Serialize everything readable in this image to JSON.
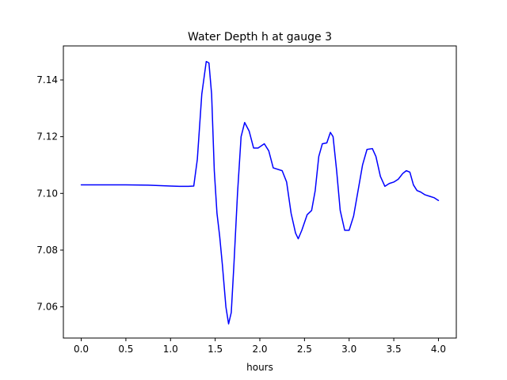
{
  "chart_data": {
    "type": "line",
    "title": "Water Depth h at gauge 3",
    "xlabel": "hours",
    "ylabel": "",
    "xlim": [
      -0.2,
      4.2
    ],
    "ylim": [
      7.049,
      7.152
    ],
    "grid": false,
    "x_ticks": [
      0.0,
      0.5,
      1.0,
      1.5,
      2.0,
      2.5,
      3.0,
      3.5,
      4.0
    ],
    "x_tick_labels": [
      "0.0",
      "0.5",
      "1.0",
      "1.5",
      "2.0",
      "2.5",
      "3.0",
      "3.5",
      "4.0"
    ],
    "y_ticks": [
      7.06,
      7.08,
      7.1,
      7.12,
      7.14
    ],
    "y_tick_labels": [
      "7.06",
      "7.08",
      "7.10",
      "7.12",
      "7.14"
    ],
    "series": [
      {
        "color": "#0000ff",
        "x": [
          0.0,
          0.5,
          0.75,
          1.0,
          1.1,
          1.2,
          1.26,
          1.3,
          1.35,
          1.4,
          1.43,
          1.46,
          1.49,
          1.52,
          1.55,
          1.58,
          1.62,
          1.65,
          1.68,
          1.71,
          1.75,
          1.79,
          1.83,
          1.88,
          1.93,
          1.98,
          2.05,
          2.1,
          2.15,
          2.25,
          2.3,
          2.35,
          2.4,
          2.43,
          2.47,
          2.53,
          2.58,
          2.62,
          2.66,
          2.7,
          2.75,
          2.79,
          2.82,
          2.86,
          2.9,
          2.95,
          3.0,
          3.05,
          3.1,
          3.15,
          3.2,
          3.26,
          3.3,
          3.35,
          3.4,
          3.45,
          3.5,
          3.55,
          3.6,
          3.64,
          3.68,
          3.72,
          3.76,
          3.8,
          3.85,
          3.9,
          3.95,
          4.0
        ],
        "y": [
          7.103,
          7.103,
          7.1029,
          7.1026,
          7.1025,
          7.1025,
          7.1026,
          7.112,
          7.135,
          7.1465,
          7.146,
          7.135,
          7.108,
          7.093,
          7.085,
          7.075,
          7.06,
          7.054,
          7.058,
          7.075,
          7.1,
          7.12,
          7.125,
          7.122,
          7.116,
          7.116,
          7.1175,
          7.115,
          7.109,
          7.108,
          7.104,
          7.093,
          7.086,
          7.084,
          7.087,
          7.0925,
          7.094,
          7.101,
          7.113,
          7.1175,
          7.1178,
          7.1215,
          7.12,
          7.108,
          7.094,
          7.087,
          7.087,
          7.092,
          7.101,
          7.11,
          7.1155,
          7.1158,
          7.113,
          7.106,
          7.1025,
          7.1035,
          7.104,
          7.105,
          7.107,
          7.108,
          7.1075,
          7.103,
          7.101,
          7.1005,
          7.0995,
          7.099,
          7.0985,
          7.0975
        ]
      }
    ]
  }
}
